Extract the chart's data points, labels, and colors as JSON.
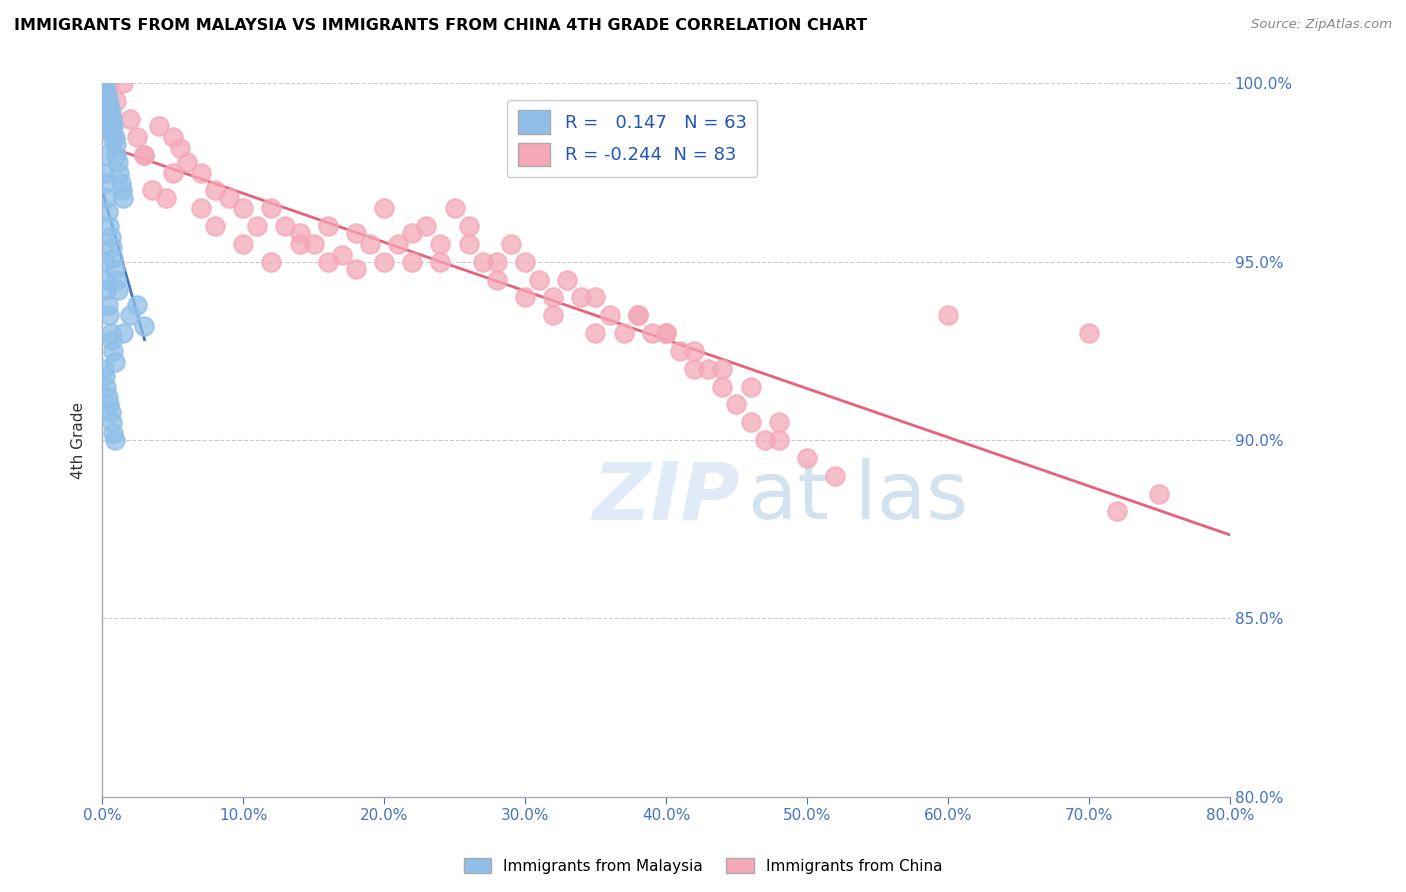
{
  "title": "IMMIGRANTS FROM MALAYSIA VS IMMIGRANTS FROM CHINA 4TH GRADE CORRELATION CHART",
  "source": "Source: ZipAtlas.com",
  "ylabel": "4th Grade",
  "xlim": [
    0.0,
    80.0
  ],
  "ylim": [
    80.0,
    100.0
  ],
  "xtick_labels": [
    "0.0%",
    "10.0%",
    "20.0%",
    "30.0%",
    "40.0%",
    "50.0%",
    "60.0%",
    "70.0%",
    "80.0%"
  ],
  "xtick_values": [
    0,
    10,
    20,
    30,
    40,
    50,
    60,
    70,
    80
  ],
  "ytick_labels": [
    "80.0%",
    "85.0%",
    "90.0%",
    "95.0%",
    "100.0%"
  ],
  "ytick_values": [
    80,
    85,
    90,
    95,
    100
  ],
  "malaysia_color": "#8FBFE8",
  "china_color": "#F4A8B8",
  "malaysia_line_color": "#4472C4",
  "china_line_color": "#E8607A",
  "malaysia_R": 0.147,
  "malaysia_N": 63,
  "china_R": -0.244,
  "china_N": 83,
  "legend_label_malaysia": "Immigrants from Malaysia",
  "legend_label_china": "Immigrants from China",
  "malaysia_x": [
    0.1,
    0.1,
    0.1,
    0.2,
    0.2,
    0.2,
    0.3,
    0.3,
    0.3,
    0.4,
    0.4,
    0.4,
    0.5,
    0.5,
    0.5,
    0.6,
    0.6,
    0.7,
    0.7,
    0.8,
    0.8,
    0.9,
    1.0,
    1.0,
    1.1,
    1.2,
    1.3,
    1.4,
    1.5,
    0.1,
    0.1,
    0.2,
    0.3,
    0.4,
    0.5,
    0.6,
    0.7,
    0.8,
    0.9,
    1.0,
    1.1,
    0.1,
    0.2,
    0.3,
    0.4,
    0.5,
    0.6,
    0.7,
    0.8,
    0.9,
    0.1,
    0.2,
    0.3,
    0.4,
    0.5,
    0.6,
    0.7,
    0.8,
    0.9,
    1.5,
    2.0,
    2.5,
    3.0
  ],
  "malaysia_y": [
    100.0,
    99.8,
    99.5,
    100.0,
    99.7,
    99.4,
    99.8,
    99.5,
    99.2,
    99.6,
    99.3,
    98.9,
    99.4,
    99.1,
    98.7,
    99.2,
    98.8,
    99.0,
    98.6,
    98.8,
    98.4,
    98.5,
    98.3,
    98.0,
    97.8,
    97.5,
    97.2,
    97.0,
    96.8,
    98.0,
    97.5,
    97.2,
    96.8,
    96.4,
    96.0,
    95.7,
    95.4,
    95.1,
    94.8,
    94.5,
    94.2,
    95.0,
    94.5,
    94.2,
    93.8,
    93.5,
    93.0,
    92.8,
    92.5,
    92.2,
    92.0,
    91.8,
    91.5,
    91.2,
    91.0,
    90.8,
    90.5,
    90.2,
    90.0,
    93.0,
    93.5,
    93.8,
    93.2
  ],
  "china_x": [
    0.5,
    1.0,
    1.5,
    2.0,
    2.5,
    3.0,
    4.0,
    5.0,
    5.5,
    6.0,
    7.0,
    8.0,
    9.0,
    10.0,
    11.0,
    12.0,
    13.0,
    14.0,
    15.0,
    16.0,
    17.0,
    18.0,
    19.0,
    20.0,
    21.0,
    22.0,
    23.0,
    24.0,
    25.0,
    26.0,
    27.0,
    28.0,
    29.0,
    30.0,
    31.0,
    32.0,
    33.0,
    34.0,
    35.0,
    36.0,
    37.0,
    38.0,
    39.0,
    40.0,
    41.0,
    42.0,
    43.0,
    44.0,
    45.0,
    46.0,
    47.0,
    48.0,
    3.0,
    5.0,
    7.0,
    3.5,
    4.5,
    8.0,
    10.0,
    12.0,
    14.0,
    16.0,
    18.0,
    20.0,
    22.0,
    24.0,
    26.0,
    28.0,
    30.0,
    32.0,
    35.0,
    38.0,
    40.0,
    42.0,
    44.0,
    46.0,
    48.0,
    50.0,
    52.0,
    60.0,
    70.0,
    75.0,
    72.0
  ],
  "china_y": [
    100.0,
    99.5,
    100.0,
    99.0,
    98.5,
    98.0,
    98.8,
    98.5,
    98.2,
    97.8,
    97.5,
    97.0,
    96.8,
    96.5,
    96.0,
    96.5,
    96.0,
    95.8,
    95.5,
    96.0,
    95.2,
    95.8,
    95.5,
    95.0,
    95.5,
    95.0,
    96.0,
    95.0,
    96.5,
    95.5,
    95.0,
    95.0,
    95.5,
    95.0,
    94.5,
    94.0,
    94.5,
    94.0,
    94.0,
    93.5,
    93.0,
    93.5,
    93.0,
    93.0,
    92.5,
    92.0,
    92.0,
    91.5,
    91.0,
    90.5,
    90.0,
    90.5,
    98.0,
    97.5,
    96.5,
    97.0,
    96.8,
    96.0,
    95.5,
    95.0,
    95.5,
    95.0,
    94.8,
    96.5,
    95.8,
    95.5,
    96.0,
    94.5,
    94.0,
    93.5,
    93.0,
    93.5,
    93.0,
    92.5,
    92.0,
    91.5,
    90.0,
    89.5,
    89.0,
    93.5,
    93.0,
    88.5,
    88.0
  ]
}
